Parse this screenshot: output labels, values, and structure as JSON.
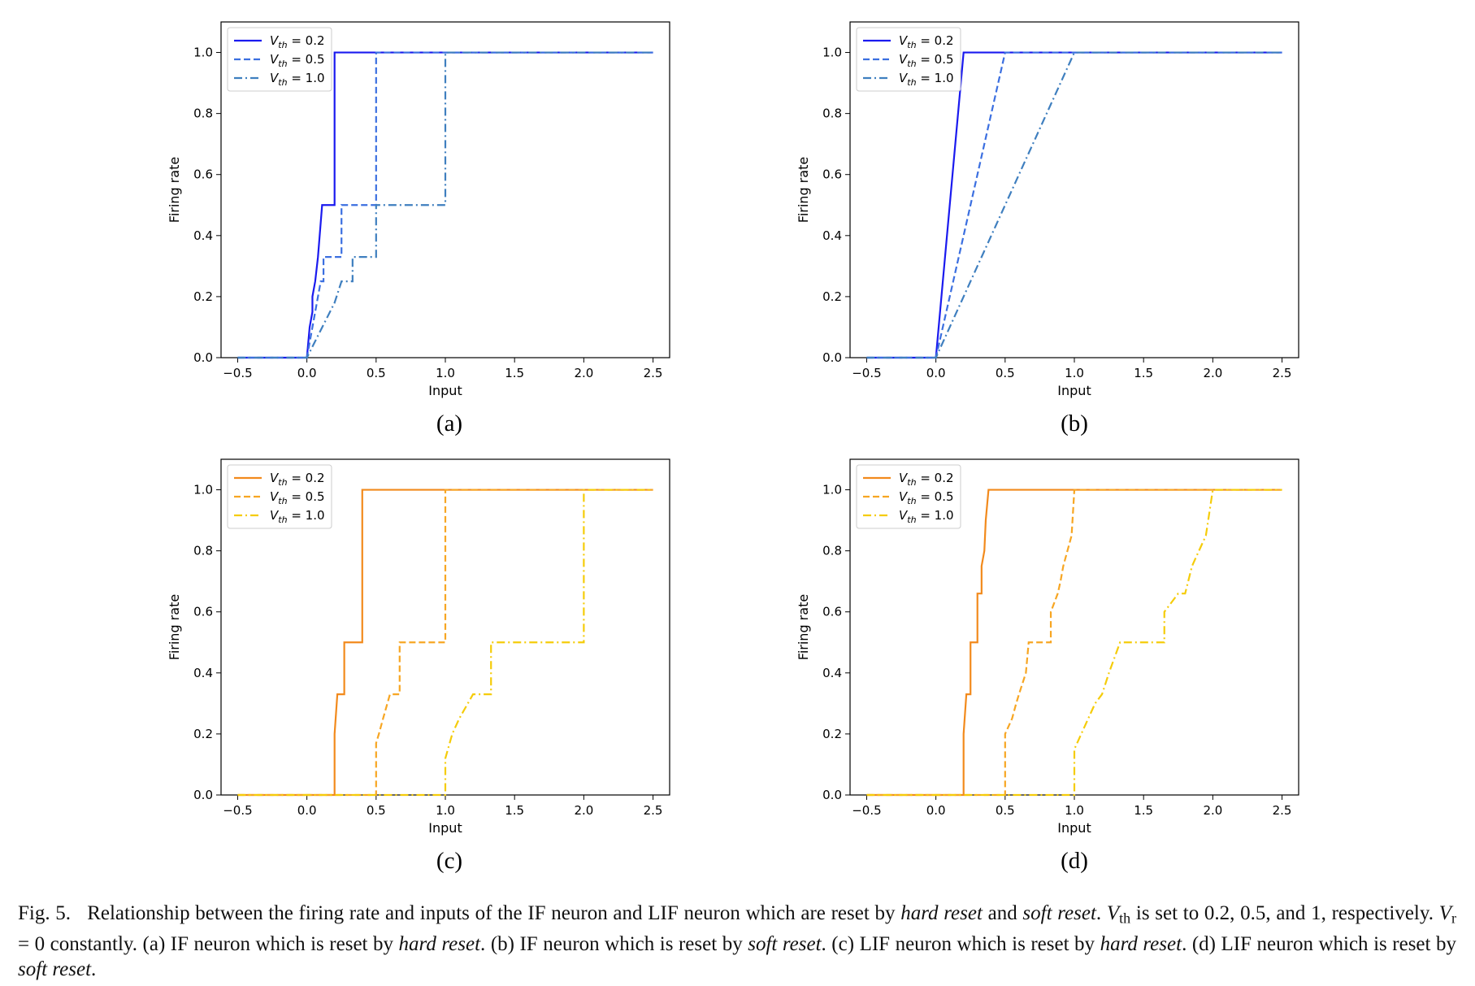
{
  "chart_data": [
    {
      "panel": "(a)",
      "type": "line",
      "xlabel": "Input",
      "ylabel": "Firing rate",
      "xlim": [
        -0.62,
        2.62
      ],
      "ylim": [
        0.0,
        1.1
      ],
      "xticks": [
        "−0.5",
        "0.0",
        "0.5",
        "1.0",
        "1.5",
        "2.0",
        "2.5"
      ],
      "yticks": [
        "0.0",
        "0.2",
        "0.4",
        "0.6",
        "0.8",
        "1.0"
      ],
      "legend_position": "upper-left",
      "grid": false,
      "series": [
        {
          "name": "V_th = 0.2",
          "color": "#1a1aef",
          "style": "solid",
          "x": [
            -0.5,
            0.0,
            0.02,
            0.04,
            0.04,
            0.06,
            0.06,
            0.08,
            0.08,
            0.11,
            0.11,
            0.2,
            0.2,
            2.5
          ],
          "y": [
            0.0,
            0.0,
            0.1,
            0.15,
            0.2,
            0.25,
            0.25,
            0.33,
            0.33,
            0.5,
            0.5,
            0.5,
            1.0,
            1.0
          ]
        },
        {
          "name": "V_th = 0.5",
          "color": "#3b6fe0",
          "style": "dashed",
          "x": [
            -0.5,
            0.0,
            0.08,
            0.1,
            0.12,
            0.12,
            0.17,
            0.17,
            0.25,
            0.25,
            0.5,
            0.5,
            2.5
          ],
          "y": [
            0.0,
            0.0,
            0.2,
            0.25,
            0.25,
            0.33,
            0.33,
            0.33,
            0.33,
            0.5,
            0.5,
            1.0,
            1.0
          ]
        },
        {
          "name": "V_th = 1.0",
          "color": "#3f7fbf",
          "style": "dashdot",
          "x": [
            -0.5,
            0.0,
            0.2,
            0.25,
            0.25,
            0.33,
            0.33,
            0.5,
            0.5,
            1.0,
            1.0,
            2.5
          ],
          "y": [
            0.0,
            0.0,
            0.18,
            0.25,
            0.25,
            0.25,
            0.33,
            0.33,
            0.5,
            0.5,
            1.0,
            1.0
          ]
        }
      ]
    },
    {
      "panel": "(b)",
      "type": "line",
      "xlabel": "Input",
      "ylabel": "Firing rate",
      "xlim": [
        -0.62,
        2.62
      ],
      "ylim": [
        0.0,
        1.1
      ],
      "xticks": [
        "−0.5",
        "0.0",
        "0.5",
        "1.0",
        "1.5",
        "2.0",
        "2.5"
      ],
      "yticks": [
        "0.0",
        "0.2",
        "0.4",
        "0.6",
        "0.8",
        "1.0"
      ],
      "legend_position": "upper-left",
      "grid": false,
      "series": [
        {
          "name": "V_th = 0.2",
          "color": "#1a1aef",
          "style": "solid",
          "x": [
            -0.5,
            0.0,
            0.2,
            2.5
          ],
          "y": [
            0.0,
            0.0,
            1.0,
            1.0
          ]
        },
        {
          "name": "V_th = 0.5",
          "color": "#3b6fe0",
          "style": "dashed",
          "x": [
            -0.5,
            0.0,
            0.5,
            2.5
          ],
          "y": [
            0.0,
            0.0,
            1.0,
            1.0
          ]
        },
        {
          "name": "V_th = 1.0",
          "color": "#3f7fbf",
          "style": "dashdot",
          "x": [
            -0.5,
            0.0,
            1.0,
            2.5
          ],
          "y": [
            0.0,
            0.0,
            1.0,
            1.0
          ]
        }
      ]
    },
    {
      "panel": "(c)",
      "type": "line",
      "xlabel": "Input",
      "ylabel": "Firing rate",
      "xlim": [
        -0.62,
        2.62
      ],
      "ylim": [
        0.0,
        1.1
      ],
      "xticks": [
        "−0.5",
        "0.0",
        "0.5",
        "1.0",
        "1.5",
        "2.0",
        "2.5"
      ],
      "yticks": [
        "0.0",
        "0.2",
        "0.4",
        "0.6",
        "0.8",
        "1.0"
      ],
      "legend_position": "upper-left",
      "grid": false,
      "series": [
        {
          "name": "V_th = 0.2",
          "color": "#f28a1c",
          "style": "solid",
          "x": [
            -0.5,
            0.2,
            0.2,
            0.22,
            0.25,
            0.25,
            0.27,
            0.27,
            0.4,
            0.4,
            2.5
          ],
          "y": [
            0.0,
            0.0,
            0.2,
            0.33,
            0.33,
            0.33,
            0.33,
            0.5,
            0.5,
            1.0,
            1.0
          ]
        },
        {
          "name": "V_th = 0.5",
          "color": "#f7a623",
          "style": "dashed",
          "x": [
            -0.5,
            0.5,
            0.5,
            0.52,
            0.55,
            0.55,
            0.6,
            0.6,
            0.67,
            0.67,
            1.0,
            1.0,
            2.5
          ],
          "y": [
            0.0,
            0.0,
            0.17,
            0.2,
            0.25,
            0.25,
            0.33,
            0.33,
            0.33,
            0.5,
            0.5,
            1.0,
            1.0
          ]
        },
        {
          "name": "V_th = 1.0",
          "color": "#f5cc0a",
          "style": "dashdot",
          "x": [
            -0.5,
            1.0,
            1.0,
            1.05,
            1.1,
            1.1,
            1.2,
            1.2,
            1.33,
            1.33,
            2.0,
            2.0,
            2.5
          ],
          "y": [
            0.0,
            0.0,
            0.12,
            0.2,
            0.25,
            0.25,
            0.33,
            0.33,
            0.33,
            0.5,
            0.5,
            1.0,
            1.0
          ]
        }
      ]
    },
    {
      "panel": "(d)",
      "type": "line",
      "xlabel": "Input",
      "ylabel": "Firing rate",
      "xlim": [
        -0.62,
        2.62
      ],
      "ylim": [
        0.0,
        1.1
      ],
      "xticks": [
        "−0.5",
        "0.0",
        "0.5",
        "1.0",
        "1.5",
        "2.0",
        "2.5"
      ],
      "yticks": [
        "0.0",
        "0.2",
        "0.4",
        "0.6",
        "0.8",
        "1.0"
      ],
      "legend_position": "upper-left",
      "grid": false,
      "series": [
        {
          "name": "V_th = 0.2",
          "color": "#f28a1c",
          "style": "solid",
          "x": [
            -0.5,
            0.2,
            0.2,
            0.22,
            0.25,
            0.25,
            0.27,
            0.27,
            0.3,
            0.3,
            0.33,
            0.33,
            0.35,
            0.36,
            0.38,
            2.5
          ],
          "y": [
            0.0,
            0.0,
            0.2,
            0.33,
            0.33,
            0.5,
            0.5,
            0.5,
            0.5,
            0.66,
            0.66,
            0.75,
            0.8,
            0.9,
            1.0,
            1.0
          ]
        },
        {
          "name": "V_th = 0.5",
          "color": "#f7a623",
          "style": "dashed",
          "x": [
            -0.5,
            0.5,
            0.5,
            0.55,
            0.58,
            0.6,
            0.6,
            0.65,
            0.67,
            0.67,
            0.83,
            0.83,
            0.88,
            0.9,
            0.92,
            0.95,
            0.98,
            1.0,
            2.5
          ],
          "y": [
            0.0,
            0.0,
            0.2,
            0.25,
            0.3,
            0.33,
            0.33,
            0.4,
            0.5,
            0.5,
            0.5,
            0.6,
            0.66,
            0.7,
            0.75,
            0.8,
            0.85,
            1.0,
            1.0
          ]
        },
        {
          "name": "V_th = 1.0",
          "color": "#f5cc0a",
          "style": "dashdot",
          "x": [
            -0.5,
            1.0,
            1.0,
            1.05,
            1.1,
            1.15,
            1.2,
            1.25,
            1.33,
            1.33,
            1.65,
            1.65,
            1.75,
            1.8,
            1.85,
            1.9,
            1.95,
            2.0,
            2.5
          ],
          "y": [
            0.0,
            0.0,
            0.15,
            0.2,
            0.25,
            0.3,
            0.33,
            0.4,
            0.5,
            0.5,
            0.5,
            0.6,
            0.66,
            0.66,
            0.75,
            0.8,
            0.85,
            1.0,
            1.0
          ]
        }
      ]
    }
  ],
  "panel_labels": [
    "(a)",
    "(b)",
    "(c)",
    "(d)"
  ],
  "caption": {
    "lead": "Fig. 5.",
    "t1": "Relationship between the firing rate and inputs of the IF neuron and LIF neuron which are reset by ",
    "hard_reset": "hard reset",
    "t2": " and ",
    "soft_reset": "soft reset",
    "t3": ". ",
    "vth_v": "V",
    "vth_sub": "th",
    "t4": " is set to 0.2, 0.5, and 1, respectively. ",
    "vr_v": "V",
    "vr_sub": "r",
    "t5": " = 0 constantly. (a) IF neuron which is reset by ",
    "t6": ". (b) IF neuron which is reset by ",
    "t7": ". (c) LIF neuron which is reset by ",
    "t8": ". (d) LIF neuron which is reset by ",
    "t9": "."
  }
}
